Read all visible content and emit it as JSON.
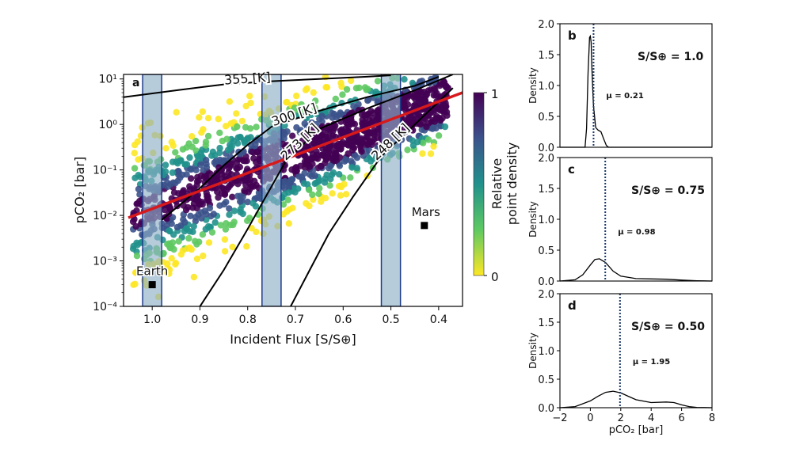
{
  "chart_data": [
    {
      "panel": "a",
      "type": "scatter",
      "panel_label": "a",
      "xlabel": "Incident Flux [S/S⊕]",
      "ylabel": "pCO₂ [bar]",
      "x_reversed": true,
      "xlim": [
        1.06,
        0.35
      ],
      "ylim_log10": [
        -4,
        1.1
      ],
      "y_scale": "log",
      "xticks": [
        1.0,
        0.9,
        0.8,
        0.7,
        0.6,
        0.5,
        0.4
      ],
      "xtick_labels": [
        "1.0",
        "0.9",
        "0.8",
        "0.7",
        "0.6",
        "0.5",
        "0.4"
      ],
      "yticks_log10": [
        -4,
        -3,
        -2,
        -1,
        0,
        1
      ],
      "ytick_labels": [
        "10⁻⁴",
        "10⁻³",
        "10⁻²",
        "10⁻¹",
        "10⁰",
        "10¹"
      ],
      "colorbar": {
        "label_line1": "Relative",
        "label_line2": "point density",
        "min_label": "0",
        "max_label": "1",
        "colors": [
          "#fde725",
          "#5ec962",
          "#21918c",
          "#3b528b",
          "#440154"
        ]
      },
      "highlight_bands": [
        {
          "x_from": 1.02,
          "x_to": 0.98
        },
        {
          "x_from": 0.77,
          "x_to": 0.73
        },
        {
          "x_from": 0.52,
          "x_to": 0.48
        }
      ],
      "fit_line": {
        "color": "#d7191c",
        "points": [
          [
            1.05,
            -2.05
          ],
          [
            0.35,
            0.7
          ]
        ]
      },
      "isotherms": [
        {
          "label": "355 [K]",
          "points": [
            [
              1.06,
              0.6
            ],
            [
              0.95,
              0.75
            ],
            [
              0.85,
              0.88
            ],
            [
              0.75,
              0.95
            ],
            [
              0.65,
              1.0
            ],
            [
              0.55,
              1.05
            ],
            [
              0.5,
              1.08
            ]
          ]
        },
        {
          "label": "300 [K]",
          "points": [
            [
              0.98,
              -2.1
            ],
            [
              0.9,
              -1.4
            ],
            [
              0.85,
              -0.9
            ],
            [
              0.8,
              -0.45
            ],
            [
              0.75,
              -0.05
            ],
            [
              0.65,
              0.3
            ],
            [
              0.55,
              0.6
            ],
            [
              0.45,
              0.85
            ],
            [
              0.4,
              1.05
            ]
          ]
        },
        {
          "label": "273 [K]",
          "points": [
            [
              0.9,
              -4.0
            ],
            [
              0.85,
              -3.2
            ],
            [
              0.8,
              -2.3
            ],
            [
              0.76,
              -1.55
            ],
            [
              0.72,
              -0.8
            ],
            [
              0.65,
              -0.1
            ],
            [
              0.55,
              0.35
            ],
            [
              0.45,
              0.75
            ],
            [
              0.37,
              1.1
            ]
          ]
        },
        {
          "label": "248 [K]",
          "points": [
            [
              0.71,
              -4.0
            ],
            [
              0.67,
              -3.2
            ],
            [
              0.63,
              -2.4
            ],
            [
              0.58,
              -1.6
            ],
            [
              0.52,
              -0.7
            ],
            [
              0.47,
              -0.2
            ],
            [
              0.42,
              0.3
            ],
            [
              0.37,
              0.8
            ]
          ]
        }
      ],
      "reference_points": [
        {
          "label": "Earth",
          "x": 1.0,
          "y": 0.0003
        },
        {
          "label": "Mars",
          "x": 0.43,
          "y": 0.006
        }
      ]
    },
    {
      "panel": "b",
      "type": "line",
      "panel_label": "b",
      "ylabel": "Density",
      "condition": "S/S⊕ = 1.0",
      "mean_label": "μ = 0.21",
      "mean": 0.21,
      "xlim": [
        -2,
        8
      ],
      "ylim": [
        0,
        2.0
      ],
      "yticks": [
        0.0,
        0.5,
        1.0,
        1.5,
        2.0
      ],
      "ytick_labels": [
        "0.0",
        "0.5",
        "1.0",
        "1.5",
        "2.0"
      ],
      "x": [
        -2,
        -0.35,
        -0.25,
        -0.15,
        -0.05,
        0.0,
        0.05,
        0.1,
        0.2,
        0.35,
        0.5,
        0.7,
        0.9,
        1.05,
        1.2,
        2,
        8
      ],
      "y": [
        0.0,
        0.0,
        0.3,
        1.2,
        1.78,
        1.8,
        1.7,
        1.3,
        0.7,
        0.32,
        0.28,
        0.25,
        0.12,
        0.03,
        0.0,
        0.0,
        0.0
      ]
    },
    {
      "panel": "c",
      "type": "line",
      "panel_label": "c",
      "ylabel": "Density",
      "condition": "S/S⊕ = 0.75",
      "mean_label": "μ = 0.98",
      "mean": 0.98,
      "xlim": [
        -2,
        8
      ],
      "ylim": [
        0,
        2.0
      ],
      "yticks": [
        0.0,
        0.5,
        1.0,
        1.5,
        2.0
      ],
      "ytick_labels": [
        "0.0",
        "0.5",
        "1.0",
        "1.5",
        "2.0"
      ],
      "x": [
        -2,
        -1,
        -0.5,
        0,
        0.3,
        0.6,
        1.0,
        1.5,
        2,
        3,
        4,
        5,
        6,
        7,
        8
      ],
      "y": [
        0.0,
        0.02,
        0.1,
        0.26,
        0.35,
        0.36,
        0.3,
        0.16,
        0.08,
        0.04,
        0.035,
        0.03,
        0.015,
        0.005,
        0.0
      ]
    },
    {
      "panel": "d",
      "type": "line",
      "panel_label": "d",
      "ylabel": "Density",
      "xlabel": "pCO₂ [bar]",
      "condition": "S/S⊕ = 0.50",
      "mean_label": "μ = 1.95",
      "mean": 1.95,
      "xlim": [
        -2,
        8
      ],
      "ylim": [
        0,
        2.0
      ],
      "yticks": [
        0.0,
        0.5,
        1.0,
        1.5,
        2.0
      ],
      "ytick_labels": [
        "0.0",
        "0.5",
        "1.0",
        "1.5",
        "2.0"
      ],
      "xticks": [
        -2,
        0,
        2,
        4,
        6,
        8
      ],
      "xtick_labels": [
        "−2",
        "0",
        "2",
        "4",
        "6",
        "8"
      ],
      "x": [
        -2,
        -1,
        0,
        0.5,
        1,
        1.5,
        2,
        2.5,
        3,
        4,
        5,
        5.5,
        6,
        6.5,
        7,
        8
      ],
      "y": [
        0.0,
        0.02,
        0.12,
        0.2,
        0.27,
        0.29,
        0.26,
        0.2,
        0.14,
        0.09,
        0.1,
        0.09,
        0.05,
        0.02,
        0.005,
        0.0
      ]
    }
  ]
}
